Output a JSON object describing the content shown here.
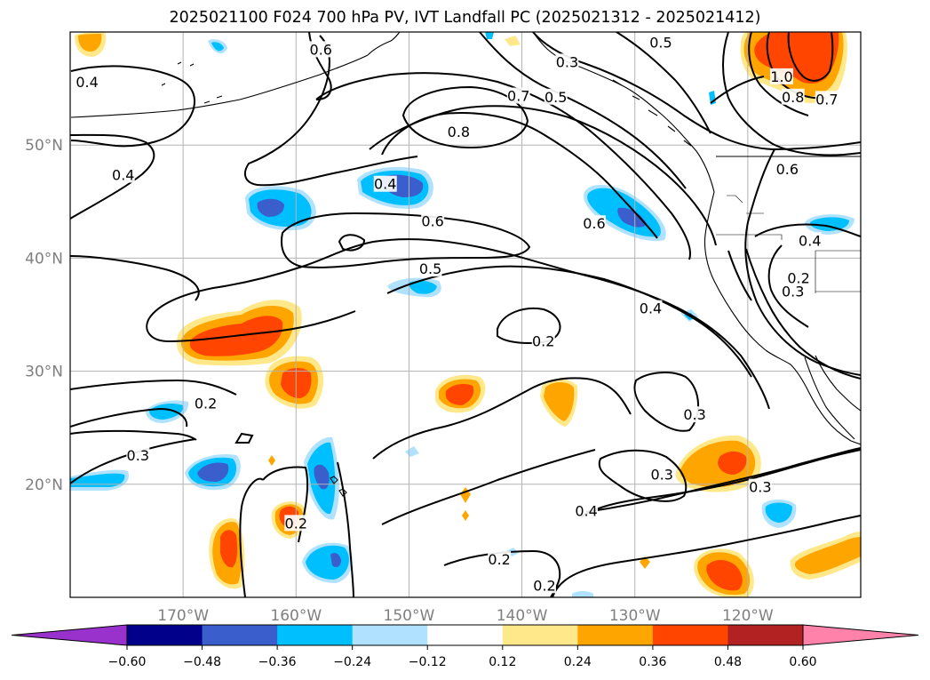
{
  "chart_data": {
    "type": "filled-contour-map",
    "title": "2025021100 F024 700 hPa PV, IVT Landfall PC (2025021312 - 2025021412)",
    "map": {
      "lon_range": [
        -180,
        -110
      ],
      "lat_range": [
        10,
        60
      ],
      "lon_ticks": [
        -170,
        -160,
        -150,
        -140,
        -130,
        -120
      ],
      "lon_tick_labels": [
        "170°W",
        "160°W",
        "150°W",
        "140°W",
        "130°W",
        "120°W"
      ],
      "lat_ticks": [
        20,
        30,
        40,
        50
      ],
      "lat_tick_labels": [
        "20°N",
        "30°N",
        "40°N",
        "50°N"
      ],
      "grid": true
    },
    "colorbar": {
      "orientation": "horizontal",
      "extend": "both",
      "levels": [
        -0.6,
        -0.48,
        -0.36,
        -0.24,
        -0.12,
        0.12,
        0.24,
        0.36,
        0.48,
        0.6
      ],
      "tick_labels": [
        "−0.60",
        "−0.48",
        "−0.36",
        "−0.24",
        "−0.12",
        "0.12",
        "0.24",
        "0.36",
        "0.48",
        "0.60"
      ],
      "colors": [
        "#9932cc",
        "#00008b",
        "#3a5fcd",
        "#00bfff",
        "#b0e2ff",
        "#ffffff",
        "#ffe88a",
        "#ffa500",
        "#ff4500",
        "#b22222",
        "#ff82ab"
      ]
    },
    "contour_labels": [
      {
        "text": "0.4",
        "lon": -178.5,
        "lat": 55.5
      },
      {
        "text": "0.4",
        "lon": -175.3,
        "lat": 47.3
      },
      {
        "text": "0.6",
        "lon": -157.8,
        "lat": 58.4
      },
      {
        "text": "0.4",
        "lon": -152.1,
        "lat": 46.5
      },
      {
        "text": "0.6",
        "lon": -147.9,
        "lat": 43.2
      },
      {
        "text": "0.5",
        "lon": -148.1,
        "lat": 39.0
      },
      {
        "text": "0.8",
        "lon": -145.6,
        "lat": 51.1
      },
      {
        "text": "0.7",
        "lon": -140.3,
        "lat": 54.3
      },
      {
        "text": "0.5",
        "lon": -137.0,
        "lat": 54.2
      },
      {
        "text": "0.3",
        "lon": -136.0,
        "lat": 57.3
      },
      {
        "text": "0.5",
        "lon": -127.7,
        "lat": 59.0
      },
      {
        "text": "0.6",
        "lon": -133.6,
        "lat": 43.0
      },
      {
        "text": "0.4",
        "lon": -128.6,
        "lat": 35.5
      },
      {
        "text": "0.2",
        "lon": -138.1,
        "lat": 32.6
      },
      {
        "text": "0.3",
        "lon": -124.7,
        "lat": 26.1
      },
      {
        "text": "0.3",
        "lon": -127.6,
        "lat": 20.8
      },
      {
        "text": "0.3",
        "lon": -118.9,
        "lat": 19.7
      },
      {
        "text": "0.4",
        "lon": -134.3,
        "lat": 17.6
      },
      {
        "text": "0.2",
        "lon": -168.0,
        "lat": 27.1
      },
      {
        "text": "0.3",
        "lon": -174.0,
        "lat": 22.5
      },
      {
        "text": "0.2",
        "lon": -160.0,
        "lat": 16.5
      },
      {
        "text": "0.2",
        "lon": -142.0,
        "lat": 13.3
      },
      {
        "text": "0.2",
        "lon": -138.0,
        "lat": 11.0
      },
      {
        "text": "1.0",
        "lon": -117.0,
        "lat": 56.0
      },
      {
        "text": "0.8",
        "lon": -116.0,
        "lat": 54.2
      },
      {
        "text": "0.7",
        "lon": -113.0,
        "lat": 54.0
      },
      {
        "text": "0.6",
        "lon": -116.5,
        "lat": 47.8
      },
      {
        "text": "0.4",
        "lon": -114.5,
        "lat": 41.5
      },
      {
        "text": "0.2",
        "lon": -115.5,
        "lat": 38.2
      },
      {
        "text": "0.3",
        "lon": -116.0,
        "lat": 37.0
      }
    ],
    "anomaly_regions": [
      {
        "sign": "positive",
        "peak": 0.48,
        "lon": -165.5,
        "lat": 33.2
      },
      {
        "sign": "positive",
        "peak": 0.36,
        "lon": -160.5,
        "lat": 29.5
      },
      {
        "sign": "positive",
        "peak": 0.36,
        "lon": -146.0,
        "lat": 28.0
      },
      {
        "sign": "positive",
        "peak": 0.24,
        "lon": -137.0,
        "lat": 28.3
      },
      {
        "sign": "positive",
        "peak": 0.36,
        "lon": -121.5,
        "lat": 21.6
      },
      {
        "sign": "positive",
        "peak": 0.36,
        "lon": -121.0,
        "lat": 12.0
      },
      {
        "sign": "positive",
        "peak": 0.36,
        "lon": -166.0,
        "lat": 14.5
      },
      {
        "sign": "positive",
        "peak": 0.36,
        "lon": -162.0,
        "lat": 17.0
      },
      {
        "sign": "positive",
        "peak": 0.24,
        "lon": -113.0,
        "lat": 13.5
      },
      {
        "sign": "positive",
        "peak": 0.48,
        "lon": -116.0,
        "lat": 57.5
      },
      {
        "sign": "positive",
        "peak": 0.24,
        "lon": -178.0,
        "lat": 59.2
      },
      {
        "sign": "negative",
        "peak": -0.36,
        "lon": -150.5,
        "lat": 47.2
      },
      {
        "sign": "negative",
        "peak": -0.36,
        "lon": -162.5,
        "lat": 44.5
      },
      {
        "sign": "negative",
        "peak": -0.36,
        "lon": -131.0,
        "lat": 43.5
      },
      {
        "sign": "negative",
        "peak": -0.24,
        "lon": -149.5,
        "lat": 37.8
      },
      {
        "sign": "negative",
        "peak": -0.36,
        "lon": -167.0,
        "lat": 21.0
      },
      {
        "sign": "negative",
        "peak": -0.24,
        "lon": -171.5,
        "lat": 26.3
      },
      {
        "sign": "negative",
        "peak": -0.24,
        "lon": -177.5,
        "lat": 20.2
      },
      {
        "sign": "negative",
        "peak": -0.36,
        "lon": -157.5,
        "lat": 19.5
      },
      {
        "sign": "negative",
        "peak": -0.36,
        "lon": -156.5,
        "lat": 13.5
      },
      {
        "sign": "negative",
        "peak": -0.24,
        "lon": -117.5,
        "lat": 17.5
      },
      {
        "sign": "negative",
        "peak": -0.24,
        "lon": -114.0,
        "lat": 43.2
      }
    ]
  }
}
